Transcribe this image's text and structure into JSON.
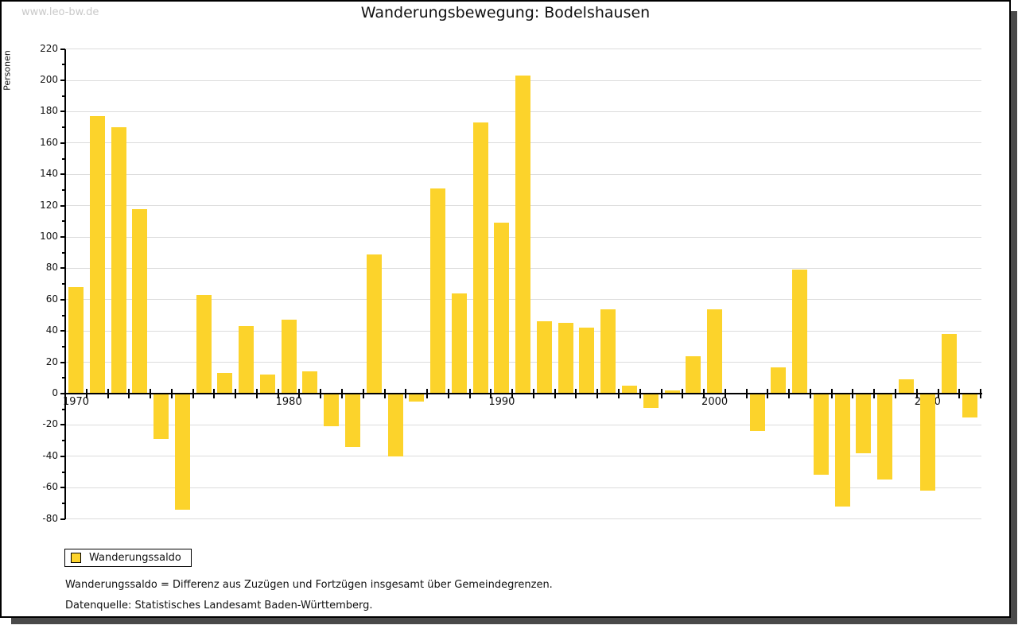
{
  "watermark": "www.leo-bw.de",
  "title": "Wanderungsbewegung: Bodelshausen",
  "legend": {
    "label": "Wanderungssaldo"
  },
  "footnotes": [
    "Wanderungssaldo = Differenz aus Zuzügen und Fortzügen insgesamt über Gemeindegrenzen.",
    "Datenquelle: Statistisches Landesamt Baden-Württemberg."
  ],
  "colors": {
    "bar": "#fcd32b",
    "grid": "#dcdcdc",
    "axis": "#000000",
    "watermark": "#c9c9c9",
    "frame_shadow": "#4a4a4a"
  },
  "chart_data": {
    "type": "bar",
    "title": "Wanderungsbewegung: Bodelshausen",
    "xlabel": "",
    "ylabel": "Personen",
    "ylim": [
      -80,
      220
    ],
    "ytick_step": 20,
    "grid": true,
    "legend_position": "bottom-left",
    "categories": [
      1970,
      1971,
      1972,
      1973,
      1974,
      1975,
      1976,
      1977,
      1978,
      1979,
      1980,
      1981,
      1982,
      1983,
      1984,
      1985,
      1986,
      1987,
      1988,
      1989,
      1990,
      1991,
      1992,
      1993,
      1994,
      1995,
      1996,
      1997,
      1998,
      1999,
      2000,
      2001,
      2002,
      2003,
      2004,
      2005,
      2006,
      2007,
      2008,
      2009,
      2010,
      2011,
      2012
    ],
    "xtick_labels": [
      "1970",
      "1980",
      "1990",
      "2000",
      "2010"
    ],
    "series": [
      {
        "name": "Wanderungssaldo",
        "values": [
          68,
          177,
          170,
          118,
          -29,
          -74,
          63,
          13,
          43,
          12,
          47,
          14,
          -21,
          -34,
          89,
          -40,
          -5,
          131,
          64,
          173,
          109,
          203,
          46,
          45,
          42,
          54,
          5,
          -9,
          2,
          24,
          54,
          0,
          -24,
          17,
          79,
          -52,
          -72,
          -38,
          -55,
          9,
          -62,
          38,
          -15
        ]
      }
    ]
  }
}
